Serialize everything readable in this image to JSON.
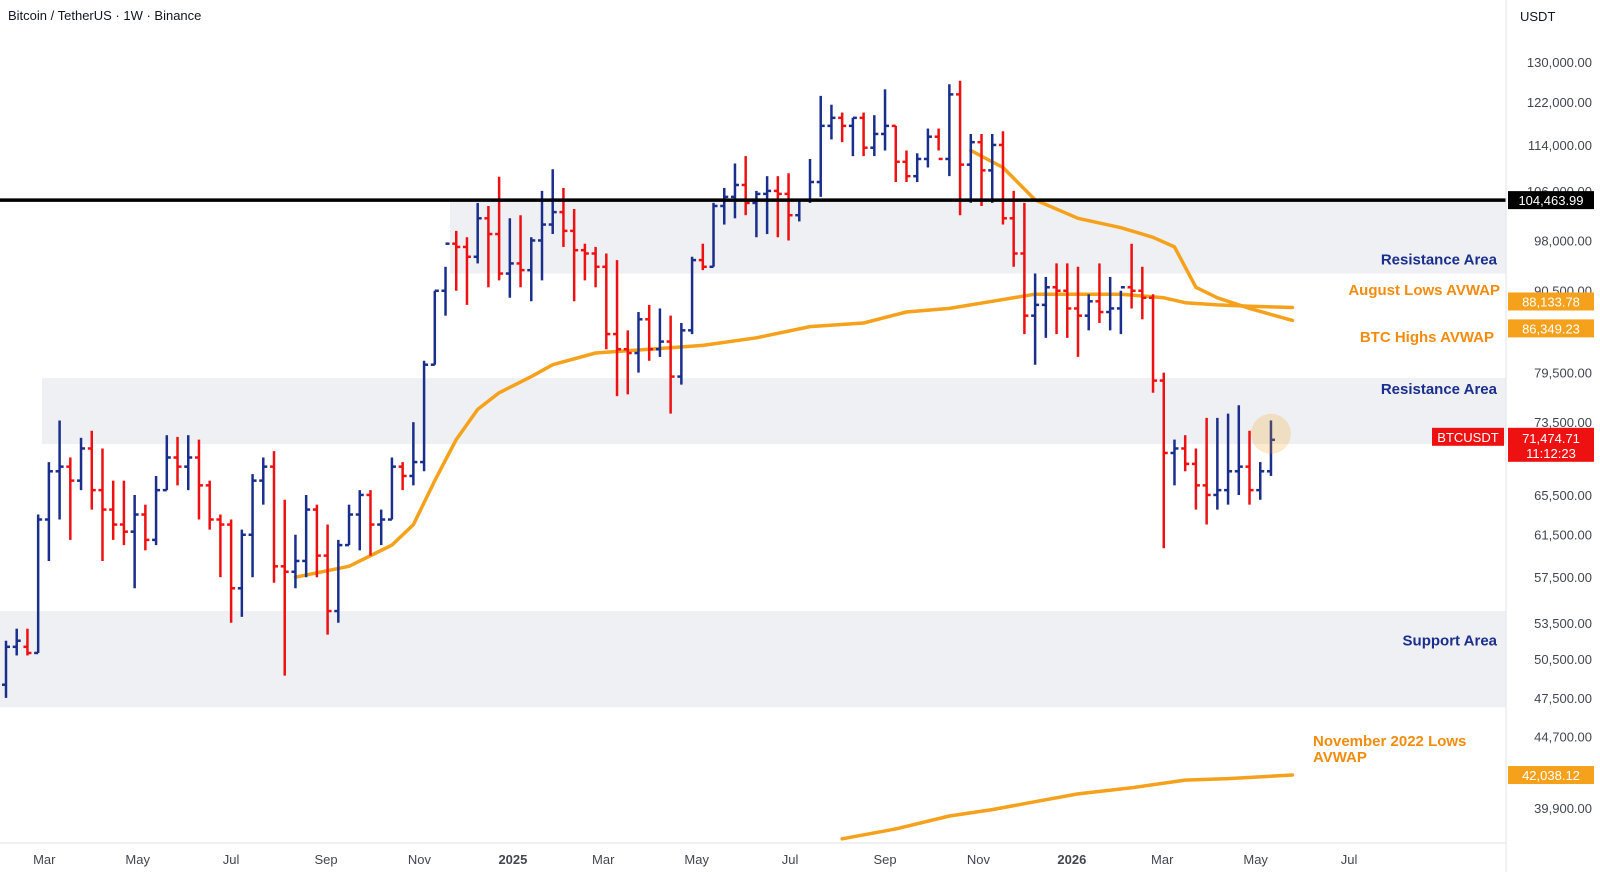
{
  "title": "Bitcoin / TetherUS · 1W · Binance",
  "currency": "USDT",
  "colors": {
    "up": "#1a2e8c",
    "down": "#ee1111",
    "avwap": "#f5a11c",
    "zone": "#eff0f3",
    "resistance_line": "#000000",
    "zone_label": "#1a2e8c",
    "avwap_label": "#f28c0f"
  },
  "chart_data": {
    "type": "ohlc",
    "interval": "1W",
    "y_axis": {
      "scale": "log",
      "ticks": [
        39900,
        44700,
        47500,
        50500,
        53500,
        57500,
        61500,
        65500,
        73500,
        79500,
        90500,
        98000,
        106000,
        114000,
        122000,
        130000
      ],
      "tick_labels": [
        "39,900.00",
        "44,700.00",
        "47,500.00",
        "50,500.00",
        "53,500.00",
        "57,500.00",
        "61,500.00",
        "65,500.00",
        "73,500.00",
        "79,500.00",
        "90,500.00",
        "98,000.00",
        "106,000.00",
        "114,000.00",
        "122,000.00",
        "130,000.00"
      ]
    },
    "x_axis": {
      "labels": [
        {
          "text": "Mar",
          "date": "2024-03-01"
        },
        {
          "text": "May",
          "date": "2024-05-01"
        },
        {
          "text": "Jul",
          "date": "2024-07-01"
        },
        {
          "text": "Sep",
          "date": "2024-09-01"
        },
        {
          "text": "Nov",
          "date": "2024-11-01"
        },
        {
          "text": "2025",
          "date": "2025-01-01",
          "bold": true
        },
        {
          "text": "Mar",
          "date": "2025-03-01"
        },
        {
          "text": "May",
          "date": "2025-05-01"
        },
        {
          "text": "Jul",
          "date": "2025-07-01"
        },
        {
          "text": "Sep",
          "date": "2025-09-01"
        },
        {
          "text": "Nov",
          "date": "2025-11-01"
        },
        {
          "text": "2026",
          "date": "2026-01-01",
          "bold": true
        },
        {
          "text": "Mar",
          "date": "2026-03-01"
        },
        {
          "text": "May",
          "date": "2026-05-01"
        },
        {
          "text": "Jul",
          "date": "2026-07-01"
        }
      ]
    },
    "bars": [
      {
        "o": 48500,
        "h": 52000,
        "l": 47500,
        "c": 51500
      },
      {
        "o": 51500,
        "h": 53000,
        "l": 50800,
        "c": 52000
      },
      {
        "o": 51500,
        "h": 53000,
        "l": 50800,
        "c": 51000
      },
      {
        "o": 51000,
        "h": 63500,
        "l": 51000,
        "c": 63000
      },
      {
        "o": 63000,
        "h": 69000,
        "l": 59000,
        "c": 68000
      },
      {
        "o": 68000,
        "h": 73700,
        "l": 63000,
        "c": 68500
      },
      {
        "o": 68500,
        "h": 69500,
        "l": 61000,
        "c": 67000
      },
      {
        "o": 67000,
        "h": 71700,
        "l": 66000,
        "c": 70500
      },
      {
        "o": 70500,
        "h": 72500,
        "l": 64000,
        "c": 66000
      },
      {
        "o": 66000,
        "h": 70500,
        "l": 59000,
        "c": 64000
      },
      {
        "o": 64000,
        "h": 67000,
        "l": 61000,
        "c": 62500
      },
      {
        "o": 62500,
        "h": 67000,
        "l": 60500,
        "c": 61800
      },
      {
        "o": 61800,
        "h": 65500,
        "l": 56500,
        "c": 63500
      },
      {
        "o": 63500,
        "h": 64500,
        "l": 60000,
        "c": 61000
      },
      {
        "o": 61000,
        "h": 67500,
        "l": 60500,
        "c": 66000
      },
      {
        "o": 66000,
        "h": 72000,
        "l": 66000,
        "c": 69500
      },
      {
        "o": 69500,
        "h": 71800,
        "l": 66500,
        "c": 68500
      },
      {
        "o": 68500,
        "h": 72000,
        "l": 66000,
        "c": 69500
      },
      {
        "o": 69500,
        "h": 71500,
        "l": 63000,
        "c": 66500
      },
      {
        "o": 66500,
        "h": 67000,
        "l": 62000,
        "c": 63000
      },
      {
        "o": 63000,
        "h": 63500,
        "l": 57500,
        "c": 62500
      },
      {
        "o": 62500,
        "h": 63000,
        "l": 53500,
        "c": 56500
      },
      {
        "o": 56500,
        "h": 62000,
        "l": 54000,
        "c": 61500
      },
      {
        "o": 61500,
        "h": 67700,
        "l": 57500,
        "c": 67000
      },
      {
        "o": 67000,
        "h": 69500,
        "l": 64500,
        "c": 68500
      },
      {
        "o": 68500,
        "h": 70200,
        "l": 57000,
        "c": 58500
      },
      {
        "o": 58500,
        "h": 65000,
        "l": 49200,
        "c": 58000
      },
      {
        "o": 58000,
        "h": 61500,
        "l": 56500,
        "c": 59000
      },
      {
        "o": 59000,
        "h": 65500,
        "l": 57500,
        "c": 64000
      },
      {
        "o": 64000,
        "h": 64500,
        "l": 57500,
        "c": 59500
      },
      {
        "o": 59500,
        "h": 62500,
        "l": 52500,
        "c": 54500
      },
      {
        "o": 54500,
        "h": 61000,
        "l": 53500,
        "c": 60500
      },
      {
        "o": 60500,
        "h": 64500,
        "l": 60500,
        "c": 63500
      },
      {
        "o": 63500,
        "h": 66000,
        "l": 60000,
        "c": 65500
      },
      {
        "o": 65500,
        "h": 66000,
        "l": 59500,
        "c": 62500
      },
      {
        "o": 62500,
        "h": 64000,
        "l": 60500,
        "c": 63000
      },
      {
        "o": 63000,
        "h": 69500,
        "l": 63000,
        "c": 68500
      },
      {
        "o": 68500,
        "h": 69000,
        "l": 66000,
        "c": 67500
      },
      {
        "o": 67500,
        "h": 73500,
        "l": 66500,
        "c": 69000
      },
      {
        "o": 69000,
        "h": 81000,
        "l": 68000,
        "c": 80500
      },
      {
        "o": 80500,
        "h": 90500,
        "l": 80500,
        "c": 90500
      },
      {
        "o": 90500,
        "h": 94000,
        "l": 87000,
        "c": 97500
      },
      {
        "o": 97500,
        "h": 99500,
        "l": 90500,
        "c": 97000
      },
      {
        "o": 97000,
        "h": 98500,
        "l": 88500,
        "c": 95500
      },
      {
        "o": 95500,
        "h": 104000,
        "l": 94500,
        "c": 101500
      },
      {
        "o": 101500,
        "h": 103500,
        "l": 91000,
        "c": 99000
      },
      {
        "o": 99000,
        "h": 108400,
        "l": 92000,
        "c": 93000
      },
      {
        "o": 93000,
        "h": 101500,
        "l": 89500,
        "c": 94500
      },
      {
        "o": 94500,
        "h": 102000,
        "l": 91000,
        "c": 93500
      },
      {
        "o": 93500,
        "h": 98500,
        "l": 89000,
        "c": 98000
      },
      {
        "o": 98000,
        "h": 106000,
        "l": 92000,
        "c": 100500
      },
      {
        "o": 100500,
        "h": 109700,
        "l": 99000,
        "c": 102500
      },
      {
        "o": 102500,
        "h": 106500,
        "l": 97000,
        "c": 99500
      },
      {
        "o": 99500,
        "h": 103000,
        "l": 89000,
        "c": 96500
      },
      {
        "o": 96500,
        "h": 97500,
        "l": 92000,
        "c": 96000
      },
      {
        "o": 96000,
        "h": 97000,
        "l": 91000,
        "c": 94000
      },
      {
        "o": 94000,
        "h": 96000,
        "l": 82500,
        "c": 84500
      },
      {
        "o": 84500,
        "h": 95000,
        "l": 76600,
        "c": 82500
      },
      {
        "o": 82500,
        "h": 85000,
        "l": 76800,
        "c": 82000
      },
      {
        "o": 82000,
        "h": 87500,
        "l": 79500,
        "c": 86500
      },
      {
        "o": 86500,
        "h": 88500,
        "l": 81000,
        "c": 82500
      },
      {
        "o": 82500,
        "h": 88000,
        "l": 81500,
        "c": 83500
      },
      {
        "o": 83500,
        "h": 87000,
        "l": 74500,
        "c": 79000
      },
      {
        "o": 79000,
        "h": 86000,
        "l": 78000,
        "c": 85000
      },
      {
        "o": 85000,
        "h": 95500,
        "l": 84500,
        "c": 95000
      },
      {
        "o": 95000,
        "h": 97500,
        "l": 93500,
        "c": 94000
      },
      {
        "o": 94000,
        "h": 104000,
        "l": 94000,
        "c": 103500
      },
      {
        "o": 103500,
        "h": 106500,
        "l": 100500,
        "c": 105000
      },
      {
        "o": 105000,
        "h": 110700,
        "l": 101500,
        "c": 107000
      },
      {
        "o": 107000,
        "h": 112000,
        "l": 102000,
        "c": 104000
      },
      {
        "o": 104000,
        "h": 106000,
        "l": 98500,
        "c": 105500
      },
      {
        "o": 105500,
        "h": 108500,
        "l": 99000,
        "c": 106000
      },
      {
        "o": 106000,
        "h": 108500,
        "l": 98500,
        "c": 105500
      },
      {
        "o": 105500,
        "h": 109000,
        "l": 98000,
        "c": 102000
      },
      {
        "o": 102000,
        "h": 104500,
        "l": 101000,
        "c": 104500
      },
      {
        "o": 104500,
        "h": 111500,
        "l": 104000,
        "c": 107500
      },
      {
        "o": 107500,
        "h": 123200,
        "l": 105000,
        "c": 117500
      },
      {
        "o": 117500,
        "h": 121500,
        "l": 115000,
        "c": 119000
      },
      {
        "o": 119000,
        "h": 120000,
        "l": 114500,
        "c": 117500
      },
      {
        "o": 117500,
        "h": 119000,
        "l": 112000,
        "c": 119000
      },
      {
        "o": 119000,
        "h": 120000,
        "l": 112000,
        "c": 113500
      },
      {
        "o": 113500,
        "h": 119500,
        "l": 112000,
        "c": 116000
      },
      {
        "o": 116000,
        "h": 124500,
        "l": 113000,
        "c": 117500
      },
      {
        "o": 117500,
        "h": 117500,
        "l": 107500,
        "c": 111000
      },
      {
        "o": 111000,
        "h": 113000,
        "l": 107500,
        "c": 108500
      },
      {
        "o": 108500,
        "h": 112500,
        "l": 107500,
        "c": 111500
      },
      {
        "o": 111500,
        "h": 117000,
        "l": 110000,
        "c": 115500
      },
      {
        "o": 115500,
        "h": 117000,
        "l": 113000,
        "c": 111500
      },
      {
        "o": 111500,
        "h": 125500,
        "l": 108500,
        "c": 123500
      },
      {
        "o": 123500,
        "h": 126200,
        "l": 102000,
        "c": 110500
      },
      {
        "o": 110500,
        "h": 116000,
        "l": 104000,
        "c": 114500
      },
      {
        "o": 114500,
        "h": 116000,
        "l": 103500,
        "c": 109500
      },
      {
        "o": 109500,
        "h": 116000,
        "l": 104000,
        "c": 114000
      },
      {
        "o": 114000,
        "h": 116500,
        "l": 100500,
        "c": 101500
      },
      {
        "o": 101500,
        "h": 106000,
        "l": 94000,
        "c": 96000
      },
      {
        "o": 96000,
        "h": 104000,
        "l": 84500,
        "c": 87000
      },
      {
        "o": 87000,
        "h": 93000,
        "l": 80500,
        "c": 88500
      },
      {
        "o": 88500,
        "h": 92500,
        "l": 84000,
        "c": 91000
      },
      {
        "o": 91000,
        "h": 94500,
        "l": 84500,
        "c": 90500
      },
      {
        "o": 90500,
        "h": 94500,
        "l": 84000,
        "c": 88000
      },
      {
        "o": 88000,
        "h": 94000,
        "l": 81500,
        "c": 87000
      },
      {
        "o": 87000,
        "h": 90000,
        "l": 85000,
        "c": 89000
      },
      {
        "o": 89000,
        "h": 94500,
        "l": 86000,
        "c": 87500
      },
      {
        "o": 87500,
        "h": 92500,
        "l": 85000,
        "c": 88000
      },
      {
        "o": 88000,
        "h": 90500,
        "l": 84500,
        "c": 91000
      },
      {
        "o": 91000,
        "h": 97500,
        "l": 88000,
        "c": 90500
      },
      {
        "o": 90500,
        "h": 94000,
        "l": 86500,
        "c": 89500
      },
      {
        "o": 89500,
        "h": 90000,
        "l": 77000,
        "c": 78500
      },
      {
        "o": 78500,
        "h": 79500,
        "l": 60200,
        "c": 70000
      },
      {
        "o": 70000,
        "h": 71500,
        "l": 66500,
        "c": 70500
      },
      {
        "o": 70500,
        "h": 72000,
        "l": 68000,
        "c": 68800
      },
      {
        "o": 68800,
        "h": 70500,
        "l": 64000,
        "c": 66500
      },
      {
        "o": 66500,
        "h": 74000,
        "l": 62500,
        "c": 65500
      },
      {
        "o": 65500,
        "h": 74000,
        "l": 64000,
        "c": 66000
      },
      {
        "o": 66000,
        "h": 74500,
        "l": 64500,
        "c": 68000
      },
      {
        "o": 68000,
        "h": 75500,
        "l": 65500,
        "c": 68500
      },
      {
        "o": 68500,
        "h": 72500,
        "l": 64500,
        "c": 66000
      },
      {
        "o": 66000,
        "h": 69000,
        "l": 65000,
        "c": 68000
      },
      {
        "o": 68000,
        "h": 73700,
        "l": 67500,
        "c": 71474.71
      }
    ],
    "avwaps": [
      {
        "name": "BTC Highs AVWAP",
        "label": "BTC Highs AVWAP",
        "points": [
          [
            90,
            113000
          ],
          [
            93,
            110000
          ],
          [
            96,
            104500
          ],
          [
            100,
            101500
          ],
          [
            104,
            100000
          ],
          [
            107,
            98500
          ],
          [
            109,
            97000
          ],
          [
            111,
            91000
          ],
          [
            113,
            89500
          ],
          [
            116,
            88000
          ],
          [
            120,
            86349.23
          ]
        ]
      },
      {
        "name": "August Lows AVWAP",
        "label": "August Lows AVWAP",
        "points": [
          [
            27,
            57500
          ],
          [
            32,
            58500
          ],
          [
            36,
            60500
          ],
          [
            38,
            62500
          ],
          [
            40,
            67000
          ],
          [
            42,
            71500
          ],
          [
            44,
            75000
          ],
          [
            46,
            77000
          ],
          [
            49,
            79000
          ],
          [
            51,
            80500
          ],
          [
            55,
            82000
          ],
          [
            60,
            82500
          ],
          [
            65,
            83000
          ],
          [
            70,
            84000
          ],
          [
            75,
            85500
          ],
          [
            80,
            86000
          ],
          [
            84,
            87500
          ],
          [
            88,
            88000
          ],
          [
            92,
            89000
          ],
          [
            96,
            90000
          ],
          [
            100,
            90000
          ],
          [
            104,
            90000
          ],
          [
            108,
            89500
          ],
          [
            110,
            88800
          ],
          [
            113,
            88500
          ],
          [
            116,
            88300
          ],
          [
            120,
            88133.78
          ]
        ]
      },
      {
        "name": "November 2022 Lows AVWAP",
        "label": "November 2022 Lows AVWAP",
        "points": [
          [
            78,
            38000
          ],
          [
            83,
            38600
          ],
          [
            88,
            39400
          ],
          [
            92,
            39800
          ],
          [
            96,
            40300
          ],
          [
            100,
            40800
          ],
          [
            105,
            41200
          ],
          [
            110,
            41700
          ],
          [
            114,
            41800
          ],
          [
            120,
            42038.12
          ]
        ]
      }
    ],
    "zones": [
      {
        "label": "Resistance Area",
        "low": 93000,
        "high": 104463.99
      },
      {
        "label": "Resistance Area",
        "low": 71000,
        "high": 78800
      },
      {
        "label": "Support Area",
        "low": 46800,
        "high": 54500
      }
    ],
    "levels": [
      {
        "value": 104463.99,
        "label": "104,463.99"
      }
    ],
    "price_labels": [
      {
        "value": 88133.78,
        "text": "88,133.78",
        "series": "August Lows AVWAP"
      },
      {
        "value": 86349.23,
        "text": "86,349.23",
        "series": "BTC Highs AVWAP"
      },
      {
        "value": 42038.12,
        "text": "42,038.12",
        "series": "November 2022 Lows AVWAP"
      }
    ],
    "last_price": {
      "value": 71474.71,
      "text": "71,474.71",
      "countdown": "11:12:23",
      "symbol": "BTCUSDT"
    }
  }
}
